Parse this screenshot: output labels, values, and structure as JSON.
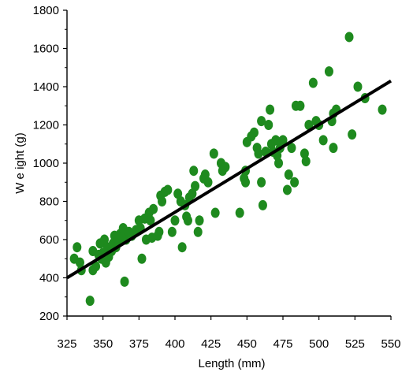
{
  "chart_data": {
    "type": "scatter",
    "xlabel": "Length (mm)",
    "ylabel": "W e ight  (g)",
    "xlim": [
      325,
      550
    ],
    "ylim": [
      200,
      1800
    ],
    "x_ticks": [
      325,
      350,
      375,
      400,
      425,
      450,
      475,
      500,
      525,
      550
    ],
    "y_ticks": [
      200,
      400,
      600,
      800,
      1000,
      1200,
      1400,
      1600,
      1800
    ],
    "grid": false,
    "legend": "none",
    "point_color": "#1e8a1e",
    "line_color": "#000000",
    "trendline": {
      "x": [
        325,
        550
      ],
      "y": [
        400,
        1430
      ]
    },
    "points": [
      {
        "x": 330,
        "y": 500
      },
      {
        "x": 332,
        "y": 560
      },
      {
        "x": 334,
        "y": 480
      },
      {
        "x": 335,
        "y": 440
      },
      {
        "x": 341,
        "y": 280
      },
      {
        "x": 343,
        "y": 540
      },
      {
        "x": 343,
        "y": 440
      },
      {
        "x": 345,
        "y": 460
      },
      {
        "x": 347,
        "y": 520
      },
      {
        "x": 348,
        "y": 580
      },
      {
        "x": 349,
        "y": 500
      },
      {
        "x": 350,
        "y": 530
      },
      {
        "x": 351,
        "y": 600
      },
      {
        "x": 352,
        "y": 480
      },
      {
        "x": 353,
        "y": 560
      },
      {
        "x": 354,
        "y": 510
      },
      {
        "x": 356,
        "y": 540
      },
      {
        "x": 357,
        "y": 580
      },
      {
        "x": 358,
        "y": 620
      },
      {
        "x": 359,
        "y": 560
      },
      {
        "x": 361,
        "y": 590
      },
      {
        "x": 362,
        "y": 630
      },
      {
        "x": 363,
        "y": 620
      },
      {
        "x": 364,
        "y": 660
      },
      {
        "x": 365,
        "y": 380
      },
      {
        "x": 366,
        "y": 600
      },
      {
        "x": 368,
        "y": 640
      },
      {
        "x": 370,
        "y": 620
      },
      {
        "x": 373,
        "y": 650
      },
      {
        "x": 375,
        "y": 700
      },
      {
        "x": 376,
        "y": 660
      },
      {
        "x": 377,
        "y": 500
      },
      {
        "x": 379,
        "y": 710
      },
      {
        "x": 380,
        "y": 600
      },
      {
        "x": 382,
        "y": 740
      },
      {
        "x": 383,
        "y": 700
      },
      {
        "x": 384,
        "y": 610
      },
      {
        "x": 385,
        "y": 760
      },
      {
        "x": 388,
        "y": 620
      },
      {
        "x": 389,
        "y": 640
      },
      {
        "x": 390,
        "y": 830
      },
      {
        "x": 391,
        "y": 800
      },
      {
        "x": 393,
        "y": 850
      },
      {
        "x": 395,
        "y": 860
      },
      {
        "x": 398,
        "y": 640
      },
      {
        "x": 400,
        "y": 700
      },
      {
        "x": 402,
        "y": 840
      },
      {
        "x": 404,
        "y": 800
      },
      {
        "x": 405,
        "y": 560
      },
      {
        "x": 407,
        "y": 780
      },
      {
        "x": 408,
        "y": 720
      },
      {
        "x": 409,
        "y": 700
      },
      {
        "x": 410,
        "y": 820
      },
      {
        "x": 412,
        "y": 840
      },
      {
        "x": 413,
        "y": 960
      },
      {
        "x": 414,
        "y": 880
      },
      {
        "x": 416,
        "y": 640
      },
      {
        "x": 417,
        "y": 700
      },
      {
        "x": 420,
        "y": 920
      },
      {
        "x": 421,
        "y": 940
      },
      {
        "x": 423,
        "y": 900
      },
      {
        "x": 427,
        "y": 1050
      },
      {
        "x": 428,
        "y": 740
      },
      {
        "x": 432,
        "y": 1000
      },
      {
        "x": 433,
        "y": 960
      },
      {
        "x": 435,
        "y": 980
      },
      {
        "x": 445,
        "y": 740
      },
      {
        "x": 448,
        "y": 920
      },
      {
        "x": 449,
        "y": 900
      },
      {
        "x": 449,
        "y": 960
      },
      {
        "x": 450,
        "y": 1110
      },
      {
        "x": 453,
        "y": 1140
      },
      {
        "x": 455,
        "y": 1160
      },
      {
        "x": 457,
        "y": 1080
      },
      {
        "x": 458,
        "y": 1050
      },
      {
        "x": 460,
        "y": 1220
      },
      {
        "x": 460,
        "y": 900
      },
      {
        "x": 461,
        "y": 780
      },
      {
        "x": 463,
        "y": 1060
      },
      {
        "x": 465,
        "y": 1200
      },
      {
        "x": 466,
        "y": 1280
      },
      {
        "x": 467,
        "y": 1100
      },
      {
        "x": 468,
        "y": 1060
      },
      {
        "x": 470,
        "y": 1120
      },
      {
        "x": 471,
        "y": 1040
      },
      {
        "x": 472,
        "y": 1000
      },
      {
        "x": 473,
        "y": 1080
      },
      {
        "x": 475,
        "y": 1120
      },
      {
        "x": 478,
        "y": 860
      },
      {
        "x": 479,
        "y": 940
      },
      {
        "x": 481,
        "y": 1080
      },
      {
        "x": 483,
        "y": 900
      },
      {
        "x": 484,
        "y": 1300
      },
      {
        "x": 487,
        "y": 1300
      },
      {
        "x": 490,
        "y": 1050
      },
      {
        "x": 491,
        "y": 1010
      },
      {
        "x": 493,
        "y": 1200
      },
      {
        "x": 496,
        "y": 1420
      },
      {
        "x": 498,
        "y": 1220
      },
      {
        "x": 500,
        "y": 1200
      },
      {
        "x": 503,
        "y": 1120
      },
      {
        "x": 507,
        "y": 1480
      },
      {
        "x": 509,
        "y": 1220
      },
      {
        "x": 510,
        "y": 1080
      },
      {
        "x": 510,
        "y": 1260
      },
      {
        "x": 512,
        "y": 1280
      },
      {
        "x": 521,
        "y": 1660
      },
      {
        "x": 523,
        "y": 1150
      },
      {
        "x": 527,
        "y": 1400
      },
      {
        "x": 532,
        "y": 1340
      },
      {
        "x": 544,
        "y": 1280
      }
    ]
  }
}
